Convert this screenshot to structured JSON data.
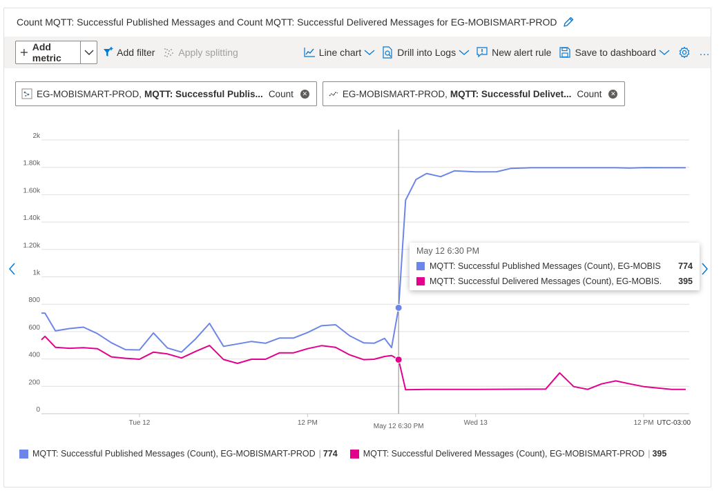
{
  "title": "Count MQTT: Successful Published Messages and Count MQTT: Successful Delivered Messages for EG-MOBISMART-PROD",
  "toolbar": {
    "add_metric": "Add metric",
    "add_filter": "Add filter",
    "apply_splitting": "Apply splitting",
    "line_chart": "Line chart",
    "drill_into_logs": "Drill into Logs",
    "new_alert_rule": "New alert rule",
    "save_to_dashboard": "Save to dashboard",
    "more": "…"
  },
  "pills": [
    {
      "resource": "EG-MOBISMART-PROD,",
      "metric": "MQTT: Successful Publis...",
      "aggregation": "Count"
    },
    {
      "resource": "EG-MOBISMART-PROD,",
      "metric": "MQTT: Successful Delivet...",
      "aggregation": "Count"
    }
  ],
  "tooltip": {
    "time": "May 12 6:30 PM",
    "rows": [
      {
        "name": "MQTT: Successful Published Messages (Count), EG-MOBIS...",
        "value": "774"
      },
      {
        "name": "MQTT: Successful Delivered Messages (Count), EG-MOBIS...",
        "value": "395"
      }
    ]
  },
  "legend": [
    {
      "name": "MQTT: Successful Published Messages (Count), EG-MOBISMART-PROD",
      "value": "774"
    },
    {
      "name": "MQTT: Successful Delivered Messages (Count), EG-MOBISMART-PROD",
      "value": "395"
    }
  ],
  "colors": {
    "published": "#6b85e8",
    "delivered": "#e3008c",
    "accent": "#0078d4",
    "grid": "#e1dfdd"
  },
  "icons": [
    "pencil-icon",
    "plus-icon",
    "chevron-down-icon",
    "filter-icon",
    "splitting-icon",
    "line-chart-icon",
    "logs-icon",
    "alert-icon",
    "save-icon",
    "gear-icon",
    "close-icon"
  ],
  "chart_data": {
    "type": "line",
    "ylim": [
      0,
      2000
    ],
    "yticks": [
      {
        "value": 0,
        "label": "0"
      },
      {
        "value": 200,
        "label": "200"
      },
      {
        "value": 400,
        "label": "400"
      },
      {
        "value": 600,
        "label": "600"
      },
      {
        "value": 800,
        "label": "800"
      },
      {
        "value": 1000,
        "label": "1k"
      },
      {
        "value": 1200,
        "label": "1.20k"
      },
      {
        "value": 1400,
        "label": "1.40k"
      },
      {
        "value": 1600,
        "label": "1.60k"
      },
      {
        "value": 1800,
        "label": "1.80k"
      },
      {
        "value": 2000,
        "label": "2k"
      }
    ],
    "xlim": [
      "2025-05-11T17:00",
      "2025-05-13T15:15"
    ],
    "xticks": [
      {
        "x": "2025-05-12T00:00",
        "label": "Tue 12"
      },
      {
        "x": "2025-05-12T12:00",
        "label": "12 PM"
      },
      {
        "x": "2025-05-12T18:30",
        "label": "May 12 6:30 PM",
        "highlight": true
      },
      {
        "x": "2025-05-13T00:00",
        "label": "Wed 13"
      },
      {
        "x": "2025-05-13T12:00",
        "label": "12 PM"
      }
    ],
    "timezone_label": "UTC-03:00",
    "crosshair": "2025-05-12T18:30",
    "grid": true,
    "legend_position": "bottom",
    "series": [
      {
        "name": "MQTT: Successful Published Messages (Count), EG-MOBISMART-PROD",
        "color": "#6b85e8",
        "points": [
          [
            "2025-05-11T17:00",
            735
          ],
          [
            "2025-05-11T17:15",
            735
          ],
          [
            "2025-05-11T18:00",
            605
          ],
          [
            "2025-05-11T19:00",
            622
          ],
          [
            "2025-05-11T20:00",
            632
          ],
          [
            "2025-05-11T21:00",
            585
          ],
          [
            "2025-05-11T22:00",
            518
          ],
          [
            "2025-05-11T23:00",
            468
          ],
          [
            "2025-05-12T00:00",
            466
          ],
          [
            "2025-05-12T01:00",
            590
          ],
          [
            "2025-05-12T02:00",
            480
          ],
          [
            "2025-05-12T03:00",
            450
          ],
          [
            "2025-05-12T04:00",
            546
          ],
          [
            "2025-05-12T05:00",
            660
          ],
          [
            "2025-05-12T06:00",
            492
          ],
          [
            "2025-05-12T07:00",
            510
          ],
          [
            "2025-05-12T08:00",
            528
          ],
          [
            "2025-05-12T09:00",
            515
          ],
          [
            "2025-05-12T10:00",
            553
          ],
          [
            "2025-05-12T11:00",
            553
          ],
          [
            "2025-05-12T12:00",
            593
          ],
          [
            "2025-05-12T13:00",
            643
          ],
          [
            "2025-05-12T14:00",
            650
          ],
          [
            "2025-05-12T15:00",
            570
          ],
          [
            "2025-05-12T16:00",
            518
          ],
          [
            "2025-05-12T16:45",
            515
          ],
          [
            "2025-05-12T17:30",
            550
          ],
          [
            "2025-05-12T18:00",
            483
          ],
          [
            "2025-05-12T18:30",
            774
          ],
          [
            "2025-05-12T19:00",
            1560
          ],
          [
            "2025-05-12T19:45",
            1712
          ],
          [
            "2025-05-12T20:30",
            1755
          ],
          [
            "2025-05-12T21:30",
            1732
          ],
          [
            "2025-05-12T22:30",
            1775
          ],
          [
            "2025-05-13T00:00",
            1767
          ],
          [
            "2025-05-13T01:30",
            1768
          ],
          [
            "2025-05-13T02:30",
            1792
          ],
          [
            "2025-05-13T04:00",
            1797
          ],
          [
            "2025-05-13T07:00",
            1797
          ],
          [
            "2025-05-13T10:00",
            1797
          ],
          [
            "2025-05-13T11:00",
            1795
          ],
          [
            "2025-05-13T12:00",
            1798
          ],
          [
            "2025-05-13T15:00",
            1797
          ]
        ]
      },
      {
        "name": "MQTT: Successful Delivered Messages (Count), EG-MOBISMART-PROD",
        "color": "#e3008c",
        "points": [
          [
            "2025-05-11T17:00",
            540
          ],
          [
            "2025-05-11T17:15",
            565
          ],
          [
            "2025-05-11T18:00",
            485
          ],
          [
            "2025-05-11T19:00",
            478
          ],
          [
            "2025-05-11T20:00",
            482
          ],
          [
            "2025-05-11T21:00",
            475
          ],
          [
            "2025-05-11T22:00",
            415
          ],
          [
            "2025-05-11T23:00",
            405
          ],
          [
            "2025-05-12T00:00",
            398
          ],
          [
            "2025-05-12T01:00",
            450
          ],
          [
            "2025-05-12T02:00",
            437
          ],
          [
            "2025-05-12T03:00",
            407
          ],
          [
            "2025-05-12T04:00",
            455
          ],
          [
            "2025-05-12T05:00",
            498
          ],
          [
            "2025-05-12T06:00",
            396
          ],
          [
            "2025-05-12T07:00",
            368
          ],
          [
            "2025-05-12T08:00",
            398
          ],
          [
            "2025-05-12T09:00",
            398
          ],
          [
            "2025-05-12T10:00",
            445
          ],
          [
            "2025-05-12T11:00",
            445
          ],
          [
            "2025-05-12T12:00",
            475
          ],
          [
            "2025-05-12T13:00",
            497
          ],
          [
            "2025-05-12T14:00",
            485
          ],
          [
            "2025-05-12T15:00",
            430
          ],
          [
            "2025-05-12T16:00",
            395
          ],
          [
            "2025-05-12T16:45",
            398
          ],
          [
            "2025-05-12T17:30",
            418
          ],
          [
            "2025-05-12T18:00",
            425
          ],
          [
            "2025-05-12T18:30",
            395
          ],
          [
            "2025-05-12T19:00",
            175
          ],
          [
            "2025-05-12T20:30",
            178
          ],
          [
            "2025-05-13T00:00",
            178
          ],
          [
            "2025-05-13T05:00",
            180
          ],
          [
            "2025-05-13T06:00",
            298
          ],
          [
            "2025-05-13T07:00",
            198
          ],
          [
            "2025-05-13T08:00",
            178
          ],
          [
            "2025-05-13T09:00",
            218
          ],
          [
            "2025-05-13T10:00",
            240
          ],
          [
            "2025-05-13T11:00",
            218
          ],
          [
            "2025-05-13T12:00",
            198
          ],
          [
            "2025-05-13T14:00",
            178
          ],
          [
            "2025-05-13T15:00",
            178
          ]
        ]
      }
    ]
  }
}
